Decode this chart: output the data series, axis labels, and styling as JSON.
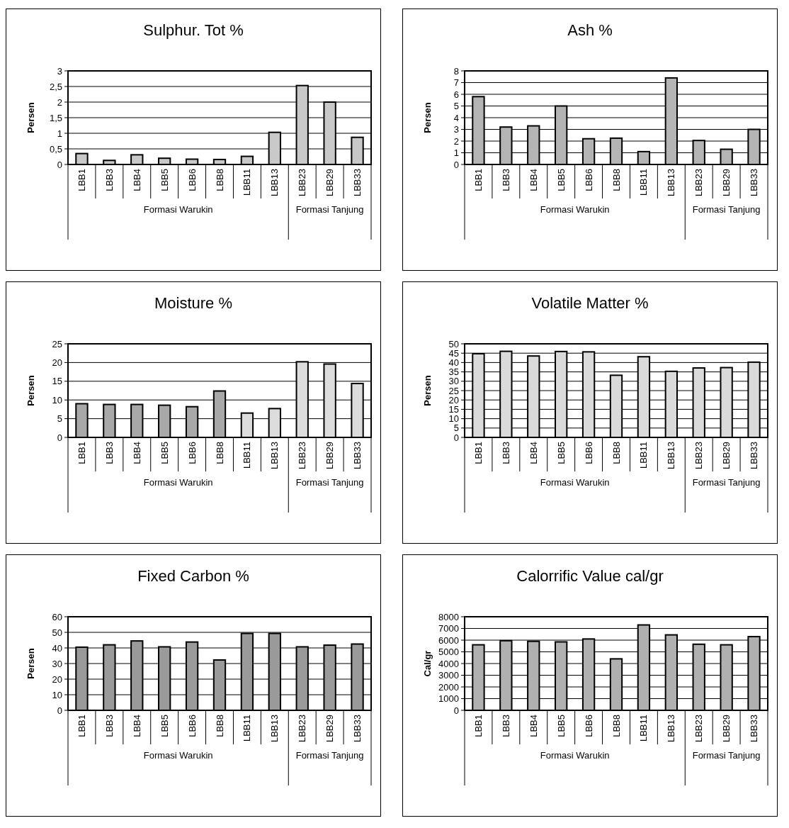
{
  "chart_data": [
    {
      "type": "bar",
      "title": "Sulphur. Tot %",
      "ylabel": "Persen",
      "categories": [
        "LBB1",
        "LBB3",
        "LBB4",
        "LBB5",
        "LBB6",
        "LBB8",
        "LBB11",
        "LBB13",
        "LBB23",
        "LBB29",
        "LBB33"
      ],
      "values": [
        0.35,
        0.13,
        0.31,
        0.2,
        0.17,
        0.16,
        0.26,
        1.03,
        2.53,
        2.0,
        0.87
      ],
      "color": "#c8c8c8",
      "ylim": [
        0,
        3
      ],
      "yticks": [
        0,
        {
          "value": 0.5,
          "label": "0,5"
        },
        1,
        {
          "value": 1.5,
          "label": "1,5"
        },
        2,
        {
          "value": 2.5,
          "label": "2,5"
        },
        3
      ],
      "grid": "y",
      "annotations": [
        "Formasi Warukin",
        "Formasi Tanjung"
      ]
    },
    {
      "type": "bar",
      "title": "Ash %",
      "ylabel": "Persen",
      "categories": [
        "LBB1",
        "LBB3",
        "LBB4",
        "LBB5",
        "LBB6",
        "LBB8",
        "LBB11",
        "LBB13",
        "LBB23",
        "LBB29",
        "LBB33"
      ],
      "values": [
        5.8,
        3.2,
        3.3,
        5.0,
        2.2,
        2.25,
        1.1,
        7.4,
        2.05,
        1.3,
        3.0
      ],
      "color": "#b4b4b4",
      "ylim": [
        0,
        8
      ],
      "yticks": [
        0,
        1,
        2,
        3,
        4,
        5,
        6,
        7,
        8
      ],
      "grid": "y",
      "annotations": [
        "Formasi Warukin",
        "Formasi Tanjung"
      ]
    },
    {
      "type": "bar",
      "title": "Moisture %",
      "ylabel": "Persen",
      "categories": [
        "LBB1",
        "LBB3",
        "LBB4",
        "LBB5",
        "LBB6",
        "LBB8",
        "LBB11",
        "LBB13",
        "LBB23",
        "LBB29",
        "LBB33"
      ],
      "values": [
        9.0,
        8.8,
        8.8,
        8.6,
        8.2,
        12.4,
        6.5,
        7.7,
        20.2,
        19.6,
        14.4
      ],
      "colors": [
        "#a8a8a8",
        "#a8a8a8",
        "#a8a8a8",
        "#a8a8a8",
        "#a8a8a8",
        "#a8a8a8",
        "#dcdcdc",
        "#dcdcdc",
        "#dcdcdc",
        "#dcdcdc",
        "#dcdcdc"
      ],
      "ylim": [
        0,
        25
      ],
      "yticks": [
        0,
        5,
        10,
        15,
        20,
        25
      ],
      "grid": "y",
      "annotations": [
        "Formasi Warukin",
        "Formasi Tanjung"
      ]
    },
    {
      "type": "bar",
      "title": "Volatile Matter %",
      "ylabel": "Persen",
      "categories": [
        "LBB1",
        "LBB3",
        "LBB4",
        "LBB5",
        "LBB6",
        "LBB8",
        "LBB11",
        "LBB13",
        "LBB23",
        "LBB29",
        "LBB33"
      ],
      "values": [
        44.7,
        46,
        43.5,
        45.9,
        45.7,
        33.2,
        43.1,
        35.3,
        37.1,
        37.3,
        40.2
      ],
      "color": "#dadada",
      "ylim": [
        0,
        50
      ],
      "yticks": [
        0,
        5,
        10,
        15,
        20,
        25,
        30,
        35,
        40,
        45,
        50
      ],
      "grid": "y",
      "annotations": [
        "Formasi Warukin",
        "Formasi Tanjung"
      ]
    },
    {
      "type": "bar",
      "title": "Fixed Carbon %",
      "ylabel": "Persen",
      "categories": [
        "LBB1",
        "LBB3",
        "LBB4",
        "LBB5",
        "LBB6",
        "LBB8",
        "LBB11",
        "LBB13",
        "LBB23",
        "LBB29",
        "LBB33"
      ],
      "values": [
        40.5,
        42,
        44.5,
        40.7,
        43.8,
        32.3,
        49.3,
        49.3,
        40.7,
        41.8,
        42.5
      ],
      "color": "#9a9a9a",
      "ylim": [
        0,
        60
      ],
      "yticks": [
        0,
        10,
        20,
        30,
        40,
        50,
        60
      ],
      "grid": "y",
      "annotations": [
        "Formasi Warukin",
        "Formasi Tanjung"
      ]
    },
    {
      "type": "bar",
      "title": "Calorrific Value cal/gr",
      "ylabel": "Cal/gr",
      "categories": [
        "LBB1",
        "LBB3",
        "LBB4",
        "LBB5",
        "LBB6",
        "LBB8",
        "LBB11",
        "LBB13",
        "LBB23",
        "LBB29",
        "LBB33"
      ],
      "values": [
        5600,
        5950,
        5900,
        5850,
        6100,
        4400,
        7300,
        6450,
        5650,
        5600,
        6300
      ],
      "color": "#b0b0b0",
      "ylim": [
        0,
        8000
      ],
      "yticks": [
        0,
        1000,
        2000,
        3000,
        4000,
        5000,
        6000,
        7000,
        8000
      ],
      "grid": "y",
      "annotations": [
        "Formasi Warukin",
        "Formasi Tanjung"
      ]
    }
  ]
}
